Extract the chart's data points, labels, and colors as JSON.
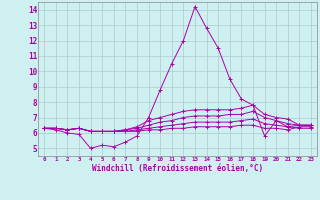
{
  "xlabel": "Windchill (Refroidissement éolien,°C)",
  "background_color": "#cff0f0",
  "line_color": "#aa00aa",
  "grid_color": "#aacccc",
  "xlim": [
    -0.5,
    23.5
  ],
  "ylim": [
    4.5,
    14.5
  ],
  "yticks": [
    5,
    6,
    7,
    8,
    9,
    10,
    11,
    12,
    13,
    14
  ],
  "xticks": [
    0,
    1,
    2,
    3,
    4,
    5,
    6,
    7,
    8,
    9,
    10,
    11,
    12,
    13,
    14,
    15,
    16,
    17,
    18,
    19,
    20,
    21,
    22,
    23
  ],
  "series": [
    [
      6.3,
      6.2,
      6.0,
      5.9,
      5.0,
      5.2,
      5.1,
      5.4,
      5.8,
      7.0,
      8.8,
      10.5,
      12.0,
      14.2,
      12.8,
      11.5,
      9.5,
      8.2,
      7.8,
      5.8,
      6.8,
      6.4,
      6.3,
      6.3
    ],
    [
      6.3,
      6.3,
      6.2,
      6.3,
      6.1,
      6.1,
      6.1,
      6.2,
      6.4,
      6.8,
      7.0,
      7.2,
      7.4,
      7.5,
      7.5,
      7.5,
      7.5,
      7.6,
      7.8,
      7.2,
      7.0,
      6.9,
      6.5,
      6.5
    ],
    [
      6.3,
      6.3,
      6.2,
      6.3,
      6.1,
      6.1,
      6.1,
      6.2,
      6.3,
      6.5,
      6.7,
      6.8,
      7.0,
      7.1,
      7.1,
      7.1,
      7.2,
      7.2,
      7.4,
      7.0,
      6.8,
      6.6,
      6.5,
      6.5
    ],
    [
      6.3,
      6.3,
      6.2,
      6.3,
      6.1,
      6.1,
      6.1,
      6.1,
      6.2,
      6.3,
      6.4,
      6.5,
      6.6,
      6.7,
      6.7,
      6.7,
      6.7,
      6.8,
      6.9,
      6.6,
      6.5,
      6.4,
      6.5,
      6.5
    ],
    [
      6.3,
      6.3,
      6.2,
      6.3,
      6.1,
      6.1,
      6.1,
      6.1,
      6.1,
      6.2,
      6.2,
      6.3,
      6.3,
      6.4,
      6.4,
      6.4,
      6.4,
      6.5,
      6.5,
      6.3,
      6.3,
      6.2,
      6.4,
      6.4
    ]
  ]
}
